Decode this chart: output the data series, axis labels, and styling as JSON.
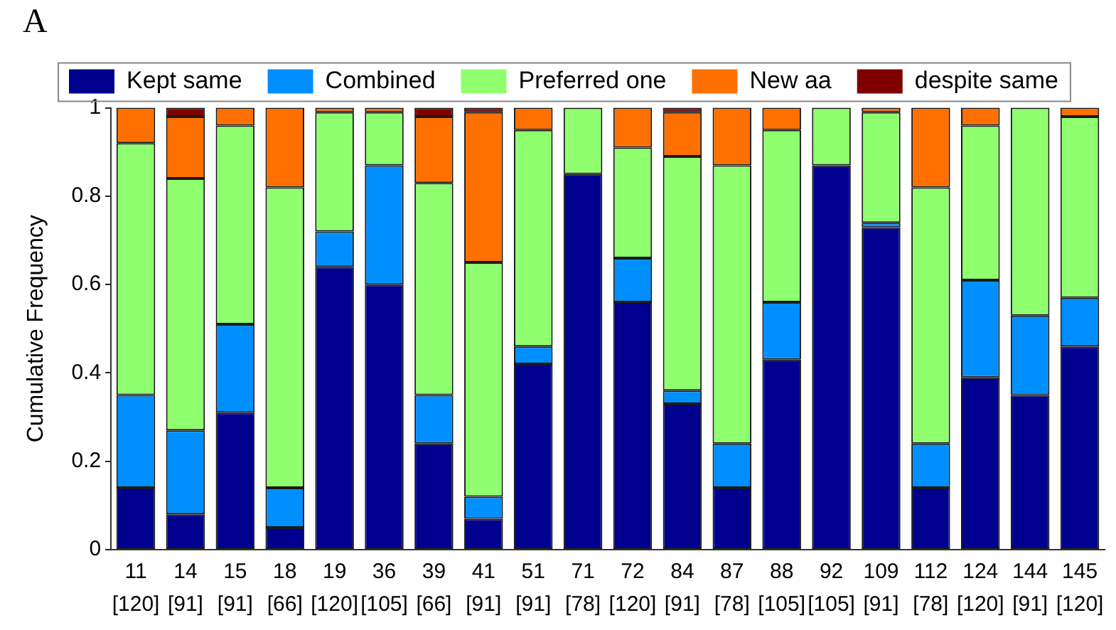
{
  "chart_data": {
    "type": "bar",
    "title": "A",
    "ylabel": "Cumulative Frequency",
    "stacked": true,
    "legend": "top",
    "grid": false,
    "categories": [
      "11\n[120]",
      "14\n[91]",
      "15\n[91]",
      "18\n[66]",
      "19\n[120]",
      "36\n[105]",
      "39\n[66]",
      "41\n[91]",
      "51\n[91]",
      "71\n[78]",
      "72\n[120]",
      "84\n[91]",
      "87\n[78]",
      "88\n[105]",
      "92\n[105]",
      "109\n[91]",
      "112\n[78]",
      "124\n[120]",
      "144\n[91]",
      "145\n[120]"
    ],
    "ylim": [
      0,
      1
    ],
    "yticks": [
      0,
      0.2,
      0.4,
      0.6,
      0.8,
      1
    ],
    "series": [
      {
        "name": "Kept same",
        "color": "#00008f",
        "values": [
          0.14,
          0.08,
          0.31,
          0.05,
          0.64,
          0.6,
          0.24,
          0.07,
          0.42,
          0.85,
          0.56,
          0.33,
          0.14,
          0.43,
          0.87,
          0.73,
          0.14,
          0.39,
          0.35,
          0.46
        ]
      },
      {
        "name": "Combined",
        "color": "#008fff",
        "values": [
          0.21,
          0.19,
          0.2,
          0.09,
          0.08,
          0.27,
          0.11,
          0.05,
          0.04,
          0,
          0.1,
          0.03,
          0.1,
          0.13,
          0,
          0.01,
          0.1,
          0.22,
          0.18,
          0.11
        ]
      },
      {
        "name": "Preferred one",
        "color": "#8fff70",
        "values": [
          0.57,
          0.57,
          0.45,
          0.68,
          0.27,
          0.12,
          0.48,
          0.53,
          0.49,
          0.15,
          0.25,
          0.53,
          0.63,
          0.39,
          0.13,
          0.25,
          0.58,
          0.35,
          0.47,
          0.41
        ]
      },
      {
        "name": "New aa",
        "color": "#ff7000",
        "values": [
          0.08,
          0.14,
          0.04,
          0.18,
          0.01,
          0.01,
          0.15,
          0.34,
          0.05,
          0,
          0.09,
          0.1,
          0.13,
          0.05,
          0,
          0.01,
          0.18,
          0.04,
          0,
          0.02
        ]
      },
      {
        "name": "despite same",
        "color": "#800000",
        "values": [
          0,
          0.02,
          0,
          0,
          0,
          0,
          0.02,
          0.01,
          0,
          0,
          0,
          0.01,
          0,
          0,
          0,
          0,
          0,
          0,
          0,
          0
        ]
      }
    ]
  }
}
